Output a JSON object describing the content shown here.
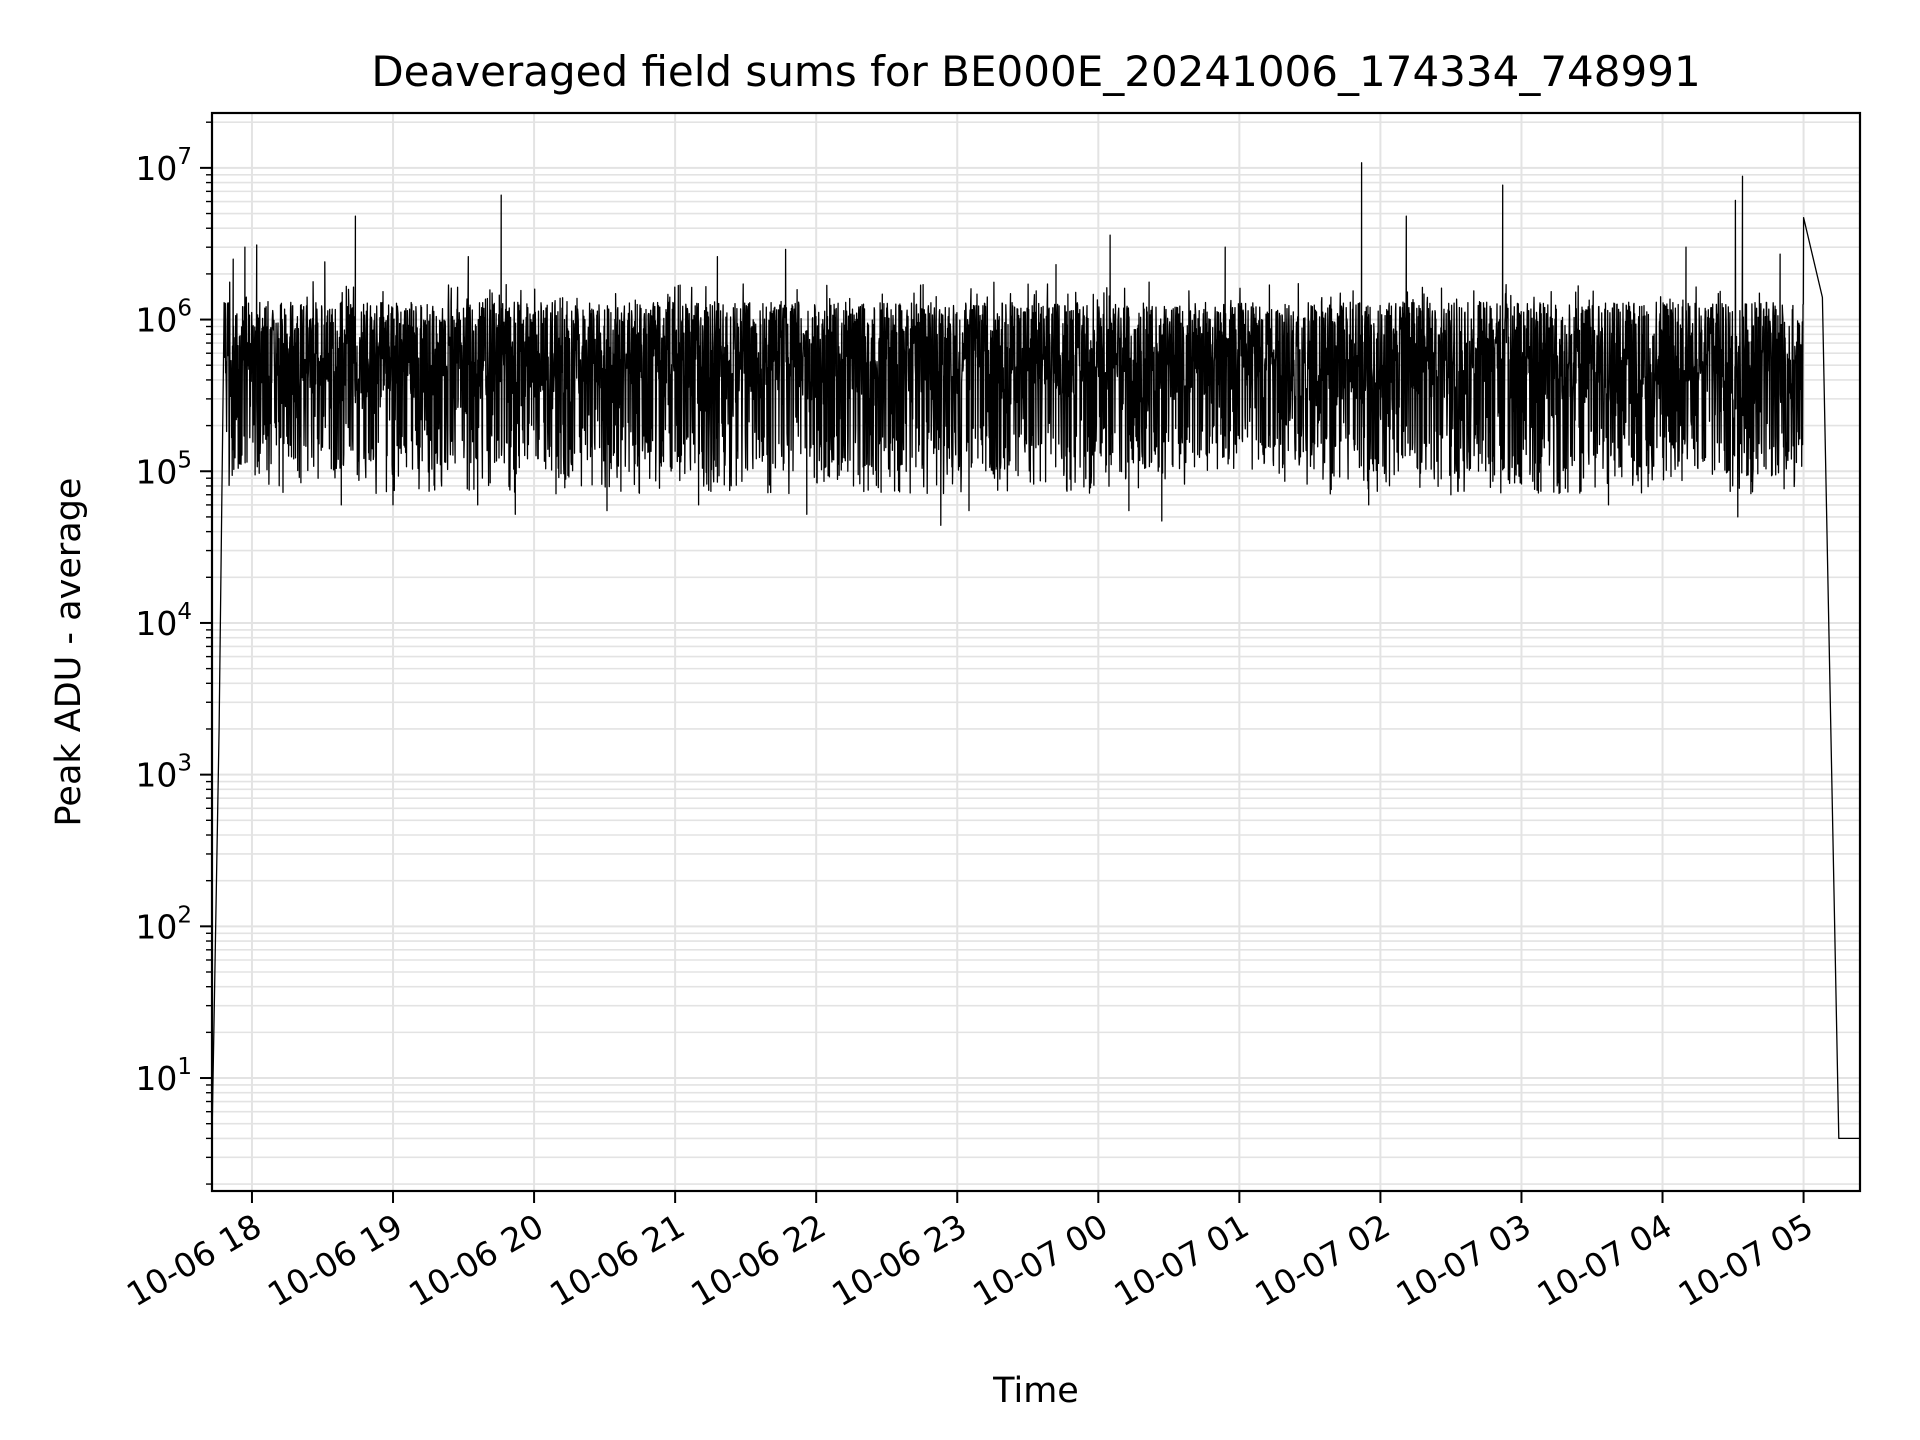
{
  "chart_data": {
    "type": "line",
    "title": "Deaveraged field sums for BE000E_20241006_174334_748991",
    "xlabel": "Time",
    "ylabel": "Peak ADU - average",
    "yscale": "log",
    "ylim": [
      1.8,
      23000000.0
    ],
    "xlim": [
      "2024-10-06T17:43",
      "2024-10-07T05:24"
    ],
    "grid": true,
    "grid_minor": true,
    "line_color": "#000000",
    "grid_color": "#e3e3e3",
    "x_ticks": [
      {
        "value": "2024-10-06T18:00",
        "label": "10-06 18"
      },
      {
        "value": "2024-10-06T19:00",
        "label": "10-06 19"
      },
      {
        "value": "2024-10-06T20:00",
        "label": "10-06 20"
      },
      {
        "value": "2024-10-06T21:00",
        "label": "10-06 21"
      },
      {
        "value": "2024-10-06T22:00",
        "label": "10-06 22"
      },
      {
        "value": "2024-10-06T23:00",
        "label": "10-06 23"
      },
      {
        "value": "2024-10-07T00:00",
        "label": "10-07 00"
      },
      {
        "value": "2024-10-07T01:00",
        "label": "10-07 01"
      },
      {
        "value": "2024-10-07T02:00",
        "label": "10-07 02"
      },
      {
        "value": "2024-10-07T03:00",
        "label": "10-07 03"
      },
      {
        "value": "2024-10-07T04:00",
        "label": "10-07 04"
      },
      {
        "value": "2024-10-07T05:00",
        "label": "10-07 05"
      }
    ],
    "y_ticks": [
      {
        "value": 10,
        "base": "10",
        "exp": "1"
      },
      {
        "value": 100,
        "base": "10",
        "exp": "2"
      },
      {
        "value": 1000,
        "base": "10",
        "exp": "3"
      },
      {
        "value": 10000,
        "base": "10",
        "exp": "4"
      },
      {
        "value": 100000,
        "base": "10",
        "exp": "5"
      },
      {
        "value": 1000000,
        "base": "10",
        "exp": "6"
      },
      {
        "value": 10000000,
        "base": "10",
        "exp": "7"
      }
    ],
    "baseline_band": {
      "typical_low": 300000,
      "typical_high": 1300000,
      "dip_floor": 50000
    },
    "series": [
      {
        "values_key_points": [
          {
            "t": "2024-10-06T17:43",
            "y": 4
          },
          {
            "t": "2024-10-06T17:46",
            "y": 2000
          },
          {
            "t": "2024-10-06T17:48",
            "y": 800000
          },
          {
            "t": "2024-10-06T17:57",
            "y": 3000000
          },
          {
            "t": "2024-10-06T18:44",
            "y": 4800000
          },
          {
            "t": "2024-10-06T19:46",
            "y": 6600000
          },
          {
            "t": "2024-10-06T22:53",
            "y": 44000
          },
          {
            "t": "2024-10-07T00:05",
            "y": 3600000
          },
          {
            "t": "2024-10-07T00:27",
            "y": 47000
          },
          {
            "t": "2024-10-07T01:52",
            "y": 10800000
          },
          {
            "t": "2024-10-07T02:11",
            "y": 4800000
          },
          {
            "t": "2024-10-07T02:52",
            "y": 7700000
          },
          {
            "t": "2024-10-07T04:31",
            "y": 6100000
          },
          {
            "t": "2024-10-07T04:32",
            "y": 50000
          },
          {
            "t": "2024-10-07T04:34",
            "y": 8800000
          },
          {
            "t": "2024-10-07T05:00",
            "y": 4700000
          },
          {
            "t": "2024-10-07T05:08",
            "y": 1400000
          },
          {
            "t": "2024-10-07T05:15",
            "y": 4
          },
          {
            "t": "2024-10-07T05:24",
            "y": 4
          }
        ],
        "spikes": [
          {
            "t": "2024-10-06T17:52",
            "y": 2500000
          },
          {
            "t": "2024-10-06T18:02",
            "y": 3100000
          },
          {
            "t": "2024-10-06T18:31",
            "y": 2400000
          },
          {
            "t": "2024-10-06T19:32",
            "y": 2600000
          },
          {
            "t": "2024-10-06T21:18",
            "y": 2600000
          },
          {
            "t": "2024-10-06T21:47",
            "y": 2900000
          },
          {
            "t": "2024-10-06T23:42",
            "y": 2300000
          },
          {
            "t": "2024-10-07T00:54",
            "y": 3000000
          },
          {
            "t": "2024-10-07T04:10",
            "y": 3000000
          },
          {
            "t": "2024-10-07T04:50",
            "y": 2700000
          }
        ],
        "dips": [
          {
            "t": "2024-10-06T18:38",
            "y": 60000
          },
          {
            "t": "2024-10-06T19:00",
            "y": 60000
          },
          {
            "t": "2024-10-06T19:36",
            "y": 60000
          },
          {
            "t": "2024-10-06T19:52",
            "y": 52000
          },
          {
            "t": "2024-10-06T20:31",
            "y": 55000
          },
          {
            "t": "2024-10-06T21:10",
            "y": 60000
          },
          {
            "t": "2024-10-06T21:56",
            "y": 52000
          },
          {
            "t": "2024-10-06T23:05",
            "y": 55000
          },
          {
            "t": "2024-10-07T00:13",
            "y": 55000
          },
          {
            "t": "2024-10-07T01:55",
            "y": 60000
          },
          {
            "t": "2024-10-07T02:30",
            "y": 70000
          },
          {
            "t": "2024-10-07T03:37",
            "y": 60000
          }
        ]
      }
    ]
  }
}
